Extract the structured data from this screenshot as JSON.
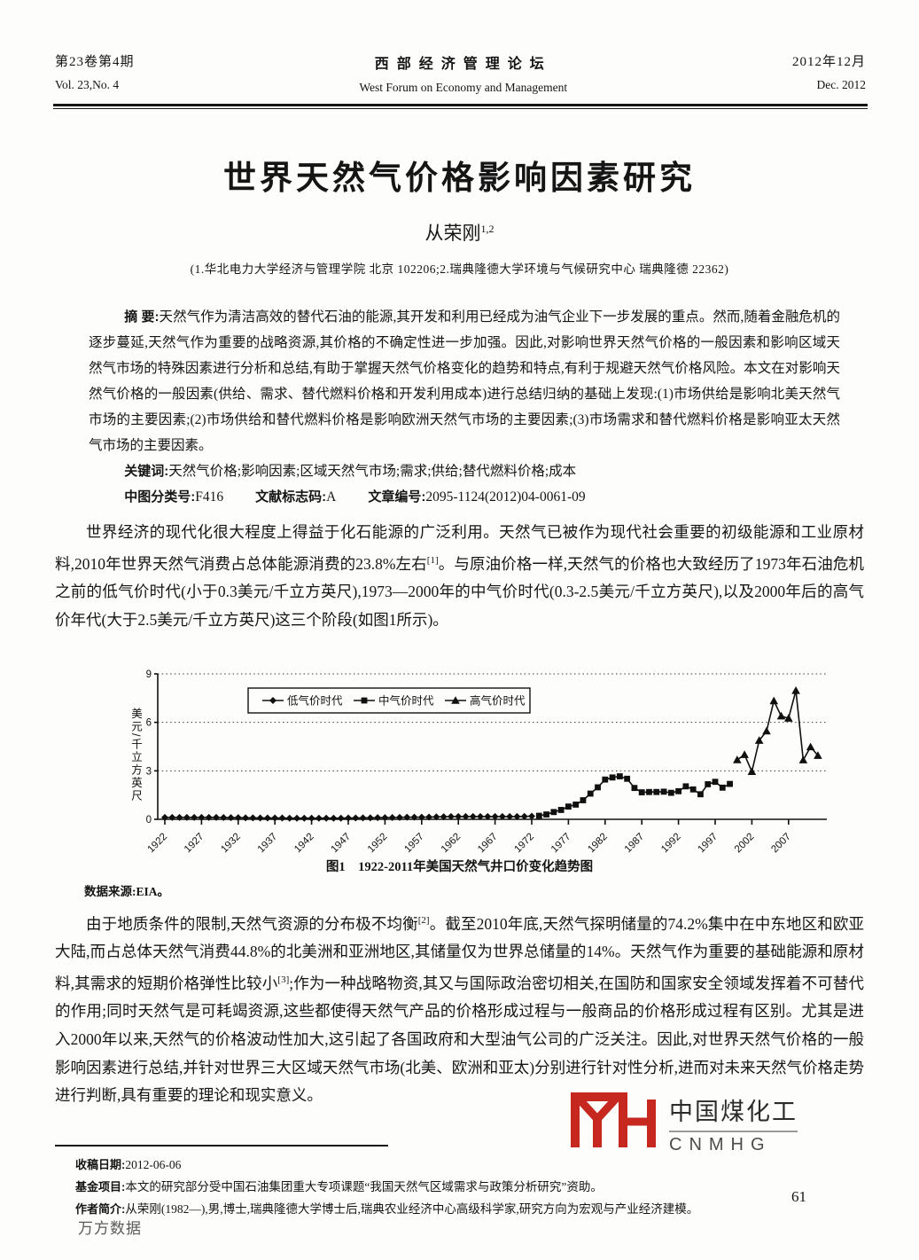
{
  "journal": {
    "volume_cn": "第23卷第4期",
    "volume_en": "Vol. 23,No. 4",
    "name_cn": "西部经济管理论坛",
    "name_en": "West Forum on Economy and Management",
    "date_cn": "2012年12月",
    "date_en": "Dec. 2012"
  },
  "article": {
    "title": "世界天然气价格影响因素研究",
    "author": "从荣刚",
    "author_sup": "1,2",
    "affiliation": "(1.华北电力大学经济与管理学院  北京  102206;2.瑞典隆德大学环境与气候研究中心  瑞典隆德  22362)"
  },
  "abstract": {
    "label": "摘  要:",
    "text": "天然气作为清洁高效的替代石油的能源,其开发和利用已经成为油气企业下一步发展的重点。然而,随着金融危机的逐步蔓延,天然气作为重要的战略资源,其价格的不确定性进一步加强。因此,对影响世界天然气价格的一般因素和影响区域天然气市场的特殊因素进行分析和总结,有助于掌握天然气价格变化的趋势和特点,有利于规避天然气价格风险。本文在对影响天然气价格的一般因素(供给、需求、替代燃料价格和开发利用成本)进行总结归纳的基础上发现:(1)市场供给是影响北美天然气市场的主要因素;(2)市场供给和替代燃料价格是影响欧洲天然气市场的主要因素;(3)市场需求和替代燃料价格是影响亚太天然气市场的主要因素。",
    "keywords_label": "关键词:",
    "keywords": "天然气价格;影响因素;区域天然气市场;需求;供给;替代燃料价格;成本",
    "clc_label": "中图分类号:",
    "clc": "F416",
    "doc_code_label": "文献标志码:",
    "doc_code": "A",
    "article_id_label": "文章编号:",
    "article_id": "2095-1124(2012)04-0061-09"
  },
  "body": {
    "p1": [
      {
        "t": "text",
        "v": "世界经济的现代化很大程度上得益于化石能源的广泛利用。天然气已被作为现代社会重要的初级能源和工业原材料,2010年世界天然气消费占总体能源消费的23.8%左右"
      },
      {
        "t": "sup",
        "v": "[1]"
      },
      {
        "t": "text",
        "v": "。与原油价格一样,天然气的价格也大致经历了1973年石油危机之前的低气价时代(小于0.3美元/千立方英尺),1973—2000年的中气价时代(0.3-2.5美元/千立方英尺),以及2000年后的高气价年代(大于2.5美元/千立方英尺)这三个阶段(如图1所示)。"
      }
    ],
    "p2": [
      {
        "t": "text",
        "v": "由于地质条件的限制,天然气资源的分布极不均衡"
      },
      {
        "t": "sup",
        "v": "[2]"
      },
      {
        "t": "text",
        "v": "。截至2010年底,天然气探明储量的74.2%集中在中东地区和欧亚大陆,而占总体天然气消费44.8%的北美洲和亚洲地区,其储量仅为世界总储量的14%。天然气作为重要的基础能源和原材料,其需求的短期价格弹性比较小"
      },
      {
        "t": "sup",
        "v": "[3]"
      },
      {
        "t": "text",
        "v": ";作为一种战略物资,其又与国际政治密切相关,在国防和国家安全领域发挥着不可替代的作用;同时天然气是可耗竭资源,这些都使得天然气产品的价格形成过程与一般商品的价格形成过程有区别。尤其是进入2000年以来,天然气的价格波动性加大,这引起了各国政府和大型油气公司的广泛关注。因此,对世界天然气价格的一般影响因素进行总结,并针对世界三大区域天然气市场(北美、欧洲和亚太)分别进行针对性分析,进而对未来天然气价格走势进行判断,具有重要的理论和现实意义。"
      }
    ]
  },
  "figure": {
    "caption_label": "图1",
    "caption_text": "1922-2011年美国天然气井口价变化趋势图",
    "source": "数据来源:EIA。"
  },
  "chart_data": {
    "type": "line",
    "title": "图1 1922-2011年美国天然气井口价变化趋势图",
    "xlabel": "",
    "ylabel": "美元/千立方英尺",
    "ylim": [
      0,
      9
    ],
    "yticks": [
      0,
      3,
      6,
      9
    ],
    "xticks": [
      1922,
      1927,
      1932,
      1937,
      1942,
      1947,
      1952,
      1957,
      1962,
      1967,
      1972,
      1977,
      1982,
      1987,
      1992,
      1997,
      2002,
      2007
    ],
    "x_range": [
      1922,
      2011
    ],
    "grid": "dotted horizontal lines at 3, 6, 9",
    "legend_position": "top-left inside plot, boxed",
    "series": [
      {
        "name": "低气价时代",
        "marker": "diamond",
        "start_year": 1922,
        "values": [
          0.12,
          0.12,
          0.12,
          0.12,
          0.12,
          0.12,
          0.12,
          0.12,
          0.11,
          0.1,
          0.1,
          0.09,
          0.09,
          0.08,
          0.08,
          0.08,
          0.08,
          0.07,
          0.07,
          0.07,
          0.07,
          0.07,
          0.07,
          0.07,
          0.07,
          0.08,
          0.08,
          0.09,
          0.09,
          0.1,
          0.1,
          0.11,
          0.12,
          0.13,
          0.13,
          0.13,
          0.14,
          0.15,
          0.16,
          0.17,
          0.17,
          0.17,
          0.17,
          0.17,
          0.17,
          0.17,
          0.17,
          0.17,
          0.17,
          0.18,
          0.19
        ]
      },
      {
        "name": "中气价时代",
        "marker": "square",
        "start_year": 1973,
        "values": [
          0.22,
          0.3,
          0.45,
          0.58,
          0.79,
          0.91,
          1.18,
          1.59,
          1.98,
          2.46,
          2.59,
          2.66,
          2.51,
          1.94,
          1.67,
          1.69,
          1.69,
          1.71,
          1.64,
          1.74,
          2.04,
          1.85,
          1.55,
          2.17,
          2.32,
          1.96,
          2.19
        ]
      },
      {
        "name": "高气价时代",
        "marker": "triangle",
        "start_year": 2000,
        "values": [
          3.68,
          4.0,
          2.95,
          4.88,
          5.46,
          7.33,
          6.39,
          6.25,
          7.97,
          3.67,
          4.48,
          3.95
        ]
      }
    ]
  },
  "watermark": {
    "cn": "中国煤化工",
    "en": "CNMHG",
    "color": "#c6281f"
  },
  "footer": {
    "received_label": "收稿日期:",
    "received": "2012-06-06",
    "fund_label": "基金项目:",
    "fund": "本文的研究部分受中国石油集团重大专项课题“我国天然气区域需求与政策分析研究”资助。",
    "bio_label": "作者简介:",
    "bio": "从荣刚(1982—),男,博士,瑞典隆德大学博士后,瑞典农业经济中心高级科学家,研究方向为宏观与产业经济建模。",
    "page_number": "61",
    "db_watermark": "万方数据"
  }
}
